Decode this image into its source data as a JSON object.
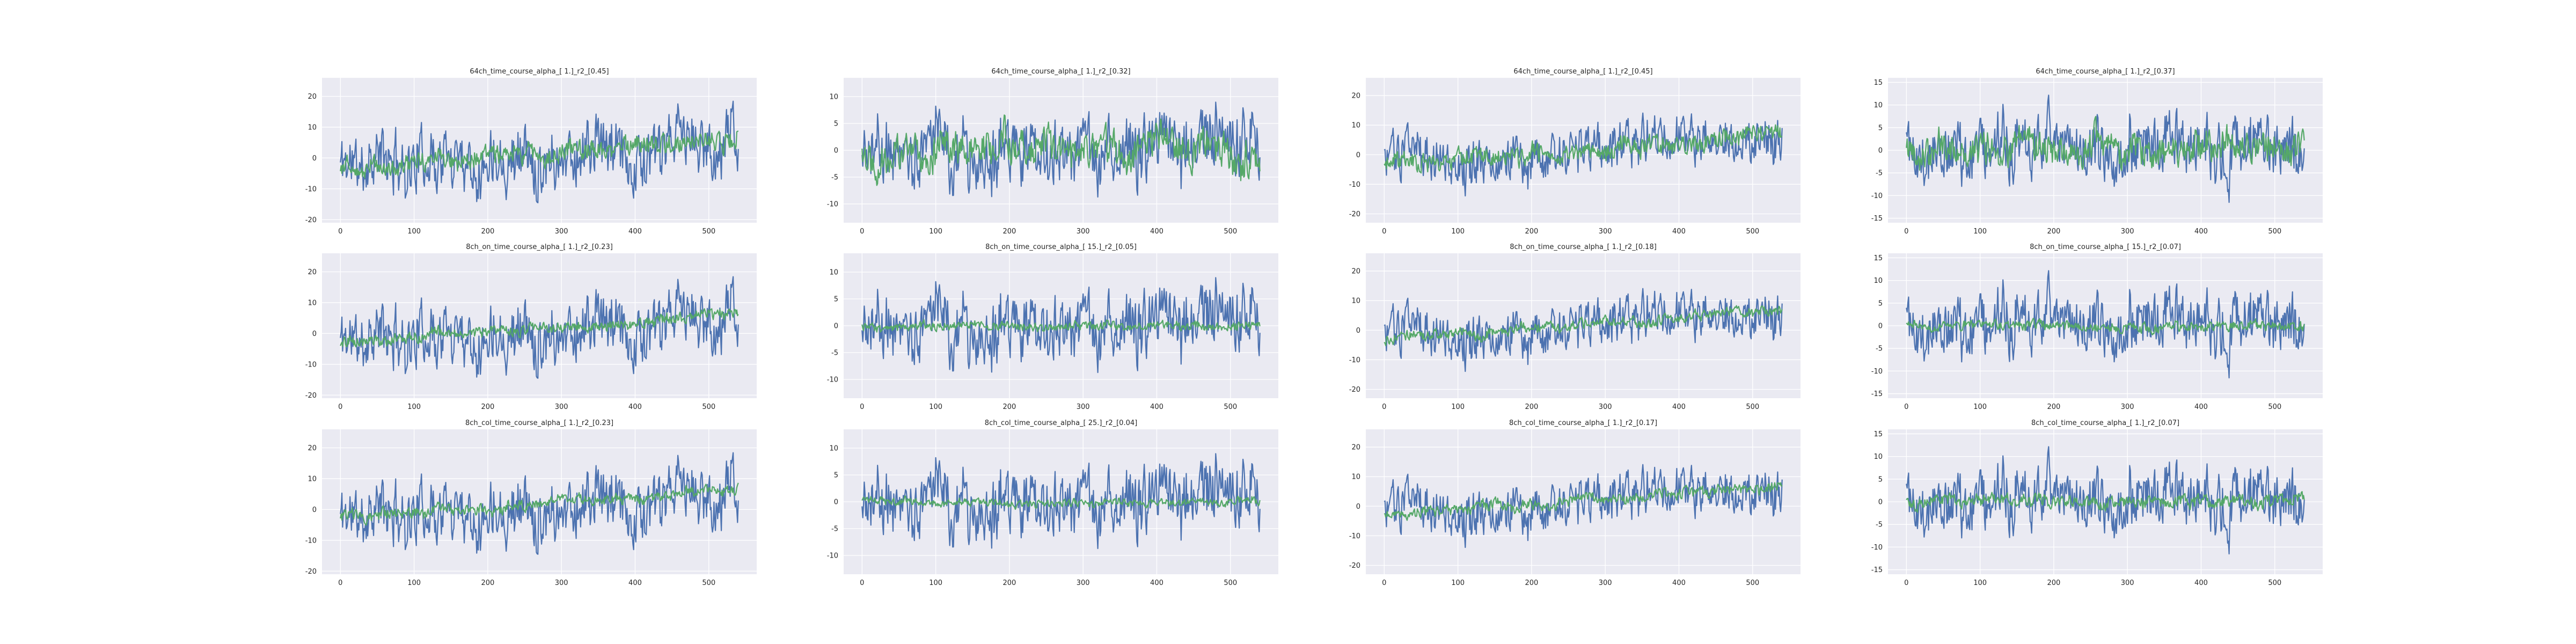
{
  "figure": {
    "background": "#ffffff",
    "plot_background": "#eaeaf2",
    "grid_color": "#ffffff"
  },
  "chart_data": [
    {
      "type": "line",
      "title": "64ch_time_course_alpha_[ 1.]_r2_[0.45]",
      "xlim": [
        -25,
        565
      ],
      "ylim": [
        -21,
        26
      ],
      "xticks": [
        0,
        100,
        200,
        300,
        400,
        500
      ],
      "yticks": [
        -20,
        -10,
        0,
        10,
        20
      ],
      "grid": true,
      "legend": "none",
      "series": [
        {
          "color": "#4c72b0",
          "n": 541,
          "amp": 11,
          "trend": 0.011,
          "seed": 11
        },
        {
          "color": "#55a868",
          "n": 541,
          "amp": 3.5,
          "trend": 0.016,
          "seed": 12
        }
      ]
    },
    {
      "type": "line",
      "title": "64ch_time_course_alpha_[ 1.]_r2_[0.32]",
      "xlim": [
        -25,
        565
      ],
      "ylim": [
        -13.5,
        13.5
      ],
      "xticks": [
        0,
        100,
        200,
        300,
        400,
        500
      ],
      "yticks": [
        -10,
        -5,
        0,
        5,
        10
      ],
      "grid": true,
      "legend": "none",
      "series": [
        {
          "color": "#4c72b0",
          "n": 541,
          "amp": 7,
          "trend": 0,
          "seed": 21
        },
        {
          "color": "#55a868",
          "n": 541,
          "amp": 3.8,
          "trend": 0,
          "seed": 22
        }
      ]
    },
    {
      "type": "line",
      "title": "64ch_time_course_alpha_[ 1.]_r2_[0.45]",
      "xlim": [
        -25,
        565
      ],
      "ylim": [
        -23,
        26
      ],
      "xticks": [
        0,
        100,
        200,
        300,
        400,
        500
      ],
      "yticks": [
        -20,
        -10,
        0,
        10,
        20
      ],
      "grid": true,
      "legend": "none",
      "series": [
        {
          "color": "#4c72b0",
          "n": 541,
          "amp": 9,
          "trend": 0.012,
          "seed": 31
        },
        {
          "color": "#55a868",
          "n": 541,
          "amp": 3.5,
          "trend": 0.018,
          "seed": 32
        }
      ]
    },
    {
      "type": "line",
      "title": "64ch_time_course_alpha_[ 1.]_r2_[0.37]",
      "xlim": [
        -25,
        565
      ],
      "ylim": [
        -16,
        16
      ],
      "xticks": [
        0,
        100,
        200,
        300,
        400,
        500
      ],
      "yticks": [
        -15,
        -10,
        -5,
        0,
        5,
        10,
        15
      ],
      "grid": true,
      "legend": "none",
      "series": [
        {
          "color": "#4c72b0",
          "n": 541,
          "amp": 7.5,
          "trend": 0,
          "seed": 41
        },
        {
          "color": "#55a868",
          "n": 541,
          "amp": 4,
          "trend": 0,
          "seed": 42
        }
      ]
    },
    {
      "type": "line",
      "title": "8ch_on_time_course_alpha_[ 1.]_r2_[0.23]",
      "xlim": [
        -25,
        565
      ],
      "ylim": [
        -21,
        26
      ],
      "xticks": [
        0,
        100,
        200,
        300,
        400,
        500
      ],
      "yticks": [
        -20,
        -10,
        0,
        10,
        20
      ],
      "grid": true,
      "legend": "none",
      "series": [
        {
          "color": "#4c72b0",
          "n": 541,
          "amp": 11,
          "trend": 0.011,
          "seed": 11
        },
        {
          "color": "#55a868",
          "n": 541,
          "amp": 2,
          "trend": 0.017,
          "seed": 52
        }
      ]
    },
    {
      "type": "line",
      "title": "8ch_on_time_course_alpha_[ 15.]_r2_[0.05]",
      "xlim": [
        -25,
        565
      ],
      "ylim": [
        -13.5,
        13.5
      ],
      "xticks": [
        0,
        100,
        200,
        300,
        400,
        500
      ],
      "yticks": [
        -10,
        -5,
        0,
        5,
        10
      ],
      "grid": true,
      "legend": "none",
      "series": [
        {
          "color": "#4c72b0",
          "n": 541,
          "amp": 7,
          "trend": 0,
          "seed": 21
        },
        {
          "color": "#55a868",
          "n": 541,
          "amp": 0.9,
          "trend": 0,
          "seed": 62
        }
      ]
    },
    {
      "type": "line",
      "title": "8ch_on_time_course_alpha_[ 1.]_r2_[0.18]",
      "xlim": [
        -25,
        565
      ],
      "ylim": [
        -23,
        26
      ],
      "xticks": [
        0,
        100,
        200,
        300,
        400,
        500
      ],
      "yticks": [
        -20,
        -10,
        0,
        10,
        20
      ],
      "grid": true,
      "legend": "none",
      "series": [
        {
          "color": "#4c72b0",
          "n": 541,
          "amp": 9,
          "trend": 0.012,
          "seed": 31
        },
        {
          "color": "#55a868",
          "n": 541,
          "amp": 2,
          "trend": 0.018,
          "seed": 72
        }
      ]
    },
    {
      "type": "line",
      "title": "8ch_on_time_course_alpha_[ 15.]_r2_[0.07]",
      "xlim": [
        -25,
        565
      ],
      "ylim": [
        -16,
        16
      ],
      "xticks": [
        0,
        100,
        200,
        300,
        400,
        500
      ],
      "yticks": [
        -15,
        -10,
        -5,
        0,
        5,
        10,
        15
      ],
      "grid": true,
      "legend": "none",
      "series": [
        {
          "color": "#4c72b0",
          "n": 541,
          "amp": 7.5,
          "trend": 0,
          "seed": 41
        },
        {
          "color": "#55a868",
          "n": 541,
          "amp": 1.2,
          "trend": 0,
          "seed": 82
        }
      ]
    },
    {
      "type": "line",
      "title": "8ch_col_time_course_alpha_[ 1.]_r2_[0.23]",
      "xlim": [
        -25,
        565
      ],
      "ylim": [
        -21,
        26
      ],
      "xticks": [
        0,
        100,
        200,
        300,
        400,
        500
      ],
      "yticks": [
        -20,
        -10,
        0,
        10,
        20
      ],
      "grid": true,
      "legend": "none",
      "series": [
        {
          "color": "#4c72b0",
          "n": 541,
          "amp": 11,
          "trend": 0.011,
          "seed": 11
        },
        {
          "color": "#55a868",
          "n": 541,
          "amp": 2,
          "trend": 0.017,
          "seed": 92
        }
      ]
    },
    {
      "type": "line",
      "title": "8ch_col_time_course_alpha_[ 25.]_r2_[0.04]",
      "xlim": [
        -25,
        565
      ],
      "ylim": [
        -13.5,
        13.5
      ],
      "xticks": [
        0,
        100,
        200,
        300,
        400,
        500
      ],
      "yticks": [
        -10,
        -5,
        0,
        5,
        10
      ],
      "grid": true,
      "legend": "none",
      "series": [
        {
          "color": "#4c72b0",
          "n": 541,
          "amp": 7,
          "trend": 0,
          "seed": 21
        },
        {
          "color": "#55a868",
          "n": 541,
          "amp": 0.8,
          "trend": 0,
          "seed": 102
        }
      ]
    },
    {
      "type": "line",
      "title": "8ch_col_time_course_alpha_[ 1.]_r2_[0.17]",
      "xlim": [
        -25,
        565
      ],
      "ylim": [
        -23,
        26
      ],
      "xticks": [
        0,
        100,
        200,
        300,
        400,
        500
      ],
      "yticks": [
        -20,
        -10,
        0,
        10,
        20
      ],
      "grid": true,
      "legend": "none",
      "series": [
        {
          "color": "#4c72b0",
          "n": 541,
          "amp": 9,
          "trend": 0.012,
          "seed": 31
        },
        {
          "color": "#55a868",
          "n": 541,
          "amp": 2,
          "trend": 0.018,
          "seed": 112
        }
      ]
    },
    {
      "type": "line",
      "title": "8ch_col_time_course_alpha_[ 1.]_r2_[0.07]",
      "xlim": [
        -25,
        565
      ],
      "ylim": [
        -16,
        16
      ],
      "xticks": [
        0,
        100,
        200,
        300,
        400,
        500
      ],
      "yticks": [
        -15,
        -10,
        -5,
        0,
        5,
        10,
        15
      ],
      "grid": true,
      "legend": "none",
      "series": [
        {
          "color": "#4c72b0",
          "n": 541,
          "amp": 7.5,
          "trend": 0,
          "seed": 41
        },
        {
          "color": "#55a868",
          "n": 541,
          "amp": 1.5,
          "trend": 0,
          "seed": 122
        }
      ]
    }
  ]
}
